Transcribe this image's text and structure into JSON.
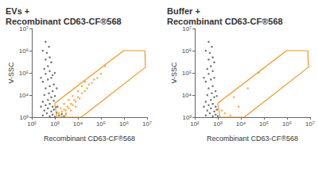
{
  "chart_data": [
    {
      "type": "scatter",
      "title": "EVs +\nRecombinant CD63-CF®568",
      "x_label": "Recombinant CD63-CF®568",
      "y_label": "V-SSC",
      "log": true,
      "grid": false,
      "xlim": [
        100,
        10000000
      ],
      "ylim": [
        1000,
        10000000
      ],
      "xticks": [
        {
          "value": 100,
          "label": "10²"
        },
        {
          "value": 1000,
          "label": "10³"
        },
        {
          "value": 10000,
          "label": "10⁴"
        },
        {
          "value": 100000,
          "label": "10⁵"
        },
        {
          "value": 1000000,
          "label": "10⁶"
        },
        {
          "value": 10000000,
          "label": "10⁷"
        }
      ],
      "yticks": [
        {
          "value": 1000,
          "label": "10³"
        },
        {
          "value": 10000,
          "label": "10⁴"
        },
        {
          "value": 100000,
          "label": "10⁵"
        },
        {
          "value": 1000000,
          "label": "10⁶"
        },
        {
          "value": 10000000,
          "label": "10⁷"
        }
      ],
      "series": [
        {
          "color": "#4d4d4d",
          "points": [
            [
              300,
              1200
            ],
            [
              450,
              1500
            ],
            [
              600,
              1100
            ],
            [
              800,
              1300
            ],
            [
              1000,
              1050
            ],
            [
              350,
              2000
            ],
            [
              500,
              2500
            ],
            [
              700,
              1800
            ],
            [
              900,
              2200
            ],
            [
              1200,
              1600
            ],
            [
              400,
              3500
            ],
            [
              600,
              4000
            ],
            [
              800,
              3000
            ],
            [
              1100,
              2800
            ],
            [
              300,
              5000
            ],
            [
              500,
              6000
            ],
            [
              700,
              8000
            ],
            [
              900,
              5500
            ],
            [
              350,
              10000
            ],
            [
              550,
              12000
            ],
            [
              800,
              15000
            ],
            [
              400,
              20000
            ],
            [
              600,
              25000
            ],
            [
              900,
              30000
            ],
            [
              300,
              40000
            ],
            [
              500,
              50000
            ],
            [
              700,
              60000
            ],
            [
              400,
              90000
            ],
            [
              600,
              120000
            ],
            [
              800,
              80000
            ],
            [
              350,
              150000
            ],
            [
              500,
              200000
            ],
            [
              700,
              300000
            ],
            [
              400,
              400000
            ],
            [
              600,
              500000
            ],
            [
              450,
              800000
            ],
            [
              300,
              1000000
            ],
            [
              550,
              1500000
            ],
            [
              400,
              2500000
            ],
            [
              1500,
              1200
            ],
            [
              2000,
              1400
            ],
            [
              1300,
              3000
            ],
            [
              1000,
              9000
            ],
            [
              1200,
              20000
            ],
            [
              1000,
              100000
            ],
            [
              250,
              3000
            ],
            [
              250,
              60000
            ],
            [
              2500,
              1100
            ]
          ]
        },
        {
          "color": "#f7931e",
          "points": [
            [
              1500,
              1500
            ],
            [
              2000,
              1800
            ],
            [
              2500,
              2200
            ],
            [
              3000,
              2000
            ],
            [
              3500,
              3000
            ],
            [
              4000,
              2500
            ],
            [
              5000,
              4000
            ],
            [
              6000,
              3500
            ],
            [
              7000,
              6000
            ],
            [
              8000,
              5000
            ],
            [
              10000,
              8000
            ],
            [
              12000,
              7000
            ],
            [
              15000,
              12000
            ],
            [
              20000,
              15000
            ],
            [
              25000,
              20000
            ],
            [
              30000,
              30000
            ],
            [
              40000,
              35000
            ],
            [
              50000,
              50000
            ],
            [
              70000,
              60000
            ],
            [
              100000,
              90000
            ],
            [
              2000,
              1100
            ],
            [
              3000,
              1300
            ],
            [
              5000,
              2000
            ],
            [
              8000,
              3000
            ],
            [
              1800,
              2500
            ],
            [
              2500,
              4000
            ],
            [
              4000,
              6000
            ],
            [
              6000,
              9000
            ],
            [
              10000,
              15000
            ],
            [
              15000,
              25000
            ],
            [
              150000,
              200000
            ],
            [
              20000,
              40000
            ],
            [
              3000,
              1500
            ],
            [
              1600,
              1200
            ]
          ]
        }
      ],
      "gate": {
        "color": "#f7931e",
        "points": [
          [
            980,
            4200
          ],
          [
            1240,
            1000
          ],
          [
            14000,
            1000
          ],
          [
            8500000,
            180000
          ],
          [
            8000000,
            1000000
          ],
          [
            950000,
            1000000
          ]
        ]
      }
    },
    {
      "type": "scatter",
      "title": "Buffer +\nRecombinant CD63-CF®568",
      "x_label": "Recombinant CD63-CF®568",
      "y_label": "V-SSC",
      "log": true,
      "grid": false,
      "xlim": [
        100,
        10000000
      ],
      "ylim": [
        1000,
        10000000
      ],
      "xticks": [
        {
          "value": 100,
          "label": "10²"
        },
        {
          "value": 1000,
          "label": "10³"
        },
        {
          "value": 10000,
          "label": "10⁴"
        },
        {
          "value": 100000,
          "label": "10⁵"
        },
        {
          "value": 1000000,
          "label": "10⁶"
        },
        {
          "value": 10000000,
          "label": "10⁷"
        }
      ],
      "yticks": [
        {
          "value": 1000,
          "label": "10³"
        },
        {
          "value": 10000,
          "label": "10⁴"
        },
        {
          "value": 100000,
          "label": "10⁵"
        },
        {
          "value": 1000000,
          "label": "10⁶"
        },
        {
          "value": 10000000,
          "label": "10⁷"
        }
      ],
      "series": [
        {
          "color": "#4d4d4d",
          "points": [
            [
              300,
              1200
            ],
            [
              450,
              1500
            ],
            [
              600,
              1100
            ],
            [
              800,
              1300
            ],
            [
              350,
              2000
            ],
            [
              500,
              2500
            ],
            [
              700,
              1800
            ],
            [
              900,
              2200
            ],
            [
              400,
              3500
            ],
            [
              600,
              4000
            ],
            [
              800,
              3000
            ],
            [
              300,
              5000
            ],
            [
              500,
              6000
            ],
            [
              700,
              8000
            ],
            [
              350,
              10000
            ],
            [
              550,
              12000
            ],
            [
              800,
              15000
            ],
            [
              400,
              20000
            ],
            [
              600,
              25000
            ],
            [
              300,
              40000
            ],
            [
              500,
              50000
            ],
            [
              700,
              60000
            ],
            [
              400,
              90000
            ],
            [
              600,
              120000
            ],
            [
              350,
              150000
            ],
            [
              500,
              200000
            ],
            [
              700,
              300000
            ],
            [
              400,
              400000
            ],
            [
              600,
              500000
            ],
            [
              450,
              800000
            ],
            [
              300,
              1000000
            ],
            [
              550,
              1500000
            ],
            [
              400,
              2500000
            ],
            [
              1000,
              1100
            ],
            [
              900,
              9000
            ],
            [
              250,
              3000
            ],
            [
              250,
              60000
            ]
          ]
        },
        {
          "color": "#f7931e",
          "points": [
            [
              2000,
              1500
            ],
            [
              5000,
              8000
            ],
            [
              20000,
              20000
            ],
            [
              8000,
              3000
            ],
            [
              1500,
              2000
            ],
            [
              60000,
              100000
            ],
            [
              3500,
              1200
            ]
          ]
        }
      ],
      "gate": {
        "color": "#f7931e",
        "points": [
          [
            980,
            4200
          ],
          [
            1240,
            1000
          ],
          [
            14000,
            1000
          ],
          [
            8500000,
            180000
          ],
          [
            8000000,
            1000000
          ],
          [
            950000,
            1000000
          ]
        ]
      }
    }
  ]
}
